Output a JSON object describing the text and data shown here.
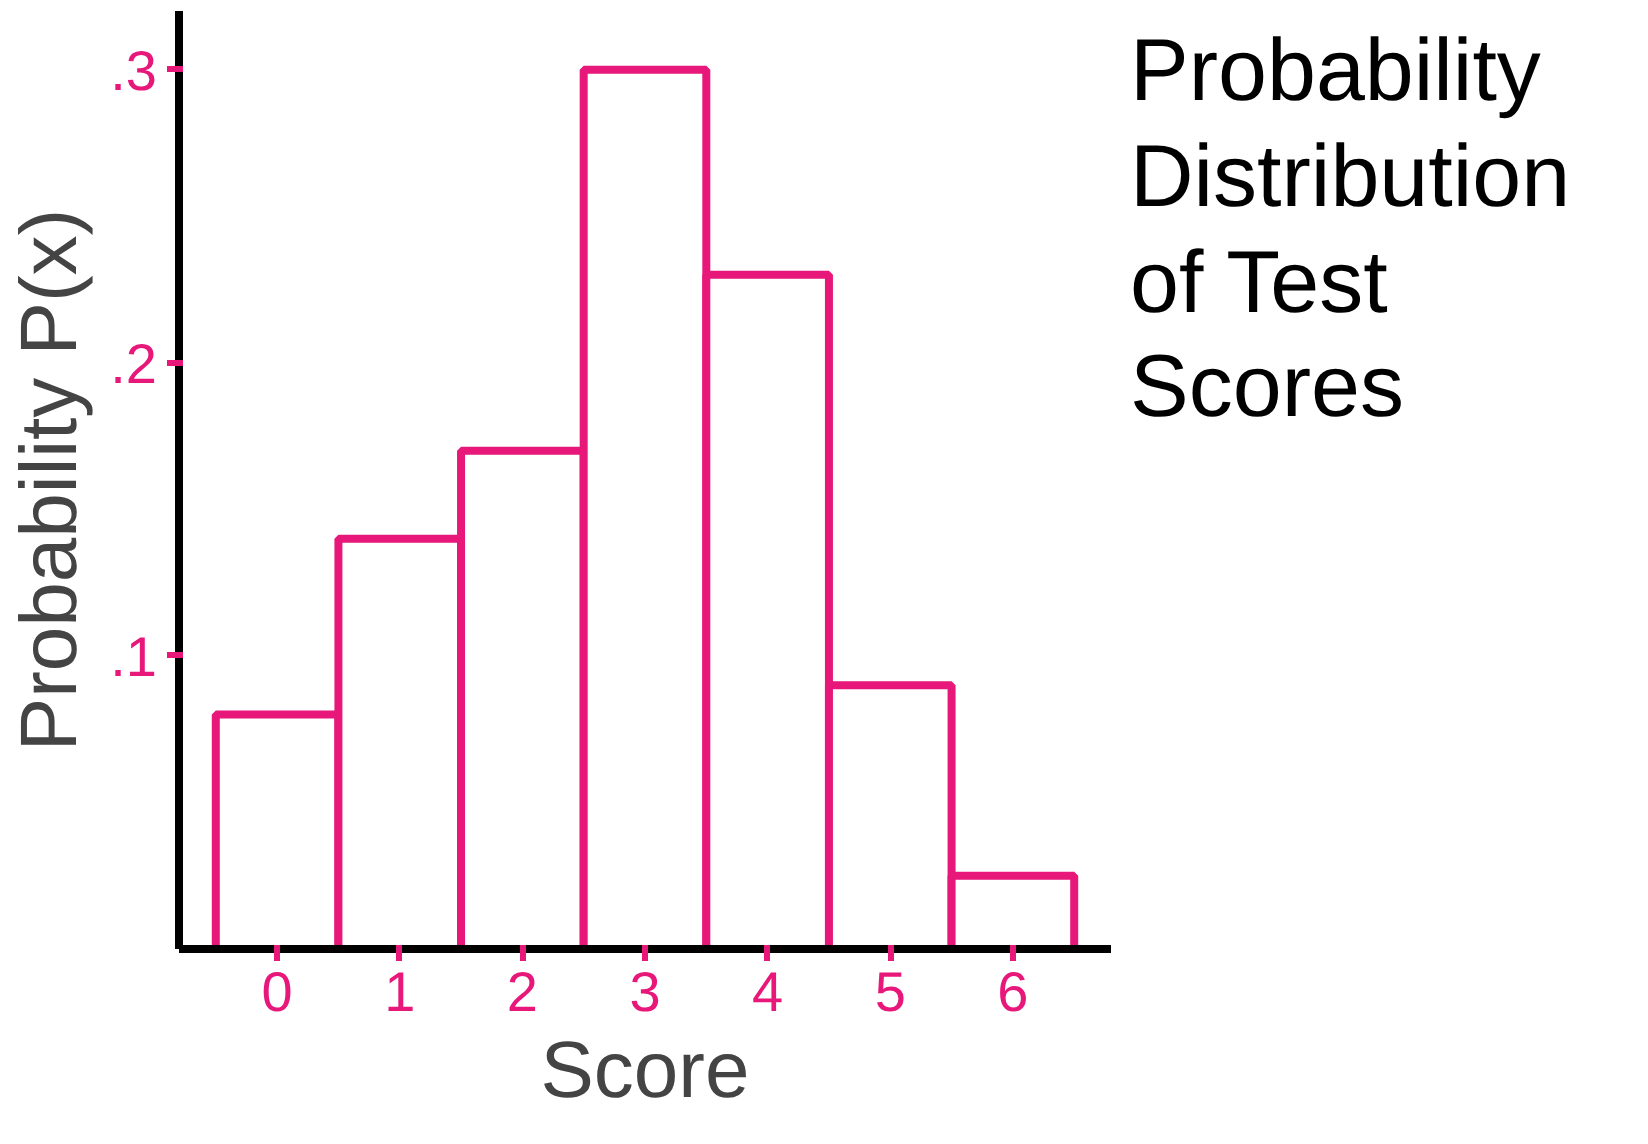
{
  "chart_data": {
    "type": "bar",
    "title": "Probability Distribution of Test Scores",
    "xlabel": "Score",
    "ylabel": "Probability P(x)",
    "categories": [
      "0",
      "1",
      "2",
      "3",
      "4",
      "5",
      "6"
    ],
    "values": [
      0.08,
      0.14,
      0.17,
      0.3,
      0.23,
      0.09,
      0.025
    ],
    "color": "#e8177a",
    "ylim": [
      0,
      0.32
    ],
    "yticks": [
      {
        "value": 0.1,
        "label": ".1"
      },
      {
        "value": 0.2,
        "label": ".2"
      },
      {
        "value": 0.3,
        "label": ".3"
      }
    ],
    "grid": false
  }
}
